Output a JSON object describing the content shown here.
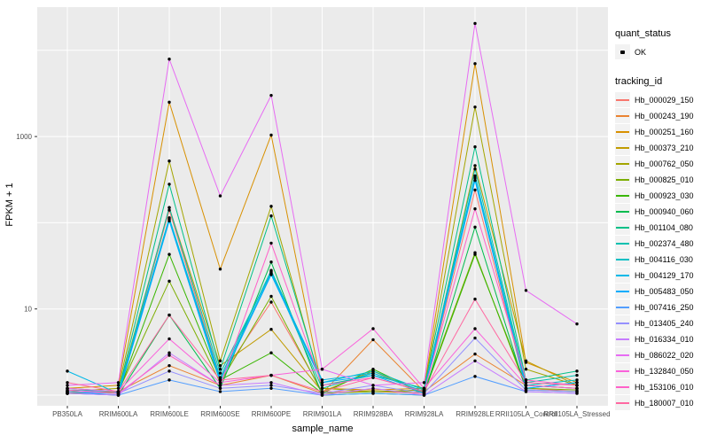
{
  "axes": {
    "x_title": "sample_name",
    "y_title": "FPKM + 1"
  },
  "legend": {
    "quant_status_title": "quant_status",
    "ok_label": "OK",
    "tracking_title": "tracking_id"
  },
  "chart_data": {
    "type": "line",
    "xlabel": "sample_name",
    "ylabel": "FPKM + 1",
    "y_scale": "log10",
    "ylim": [
      1,
      31600
    ],
    "grid": "on",
    "legend_position": "right",
    "panel_bg": "#EBEBEB",
    "gridline_color": "#FFFFFF",
    "point_color": "#000000",
    "tick_label_color": "#4D4D4D",
    "quant_status": "OK",
    "y_ticks": [
      {
        "label": "10",
        "value": 10
      },
      {
        "label": "1000",
        "value": 1000
      }
    ],
    "gridline_values": [
      1,
      10,
      100,
      1000,
      10000
    ],
    "x_categories": [
      "PB350LA",
      "RRIM600LA",
      "RRIM600LE",
      "RRIM600SE",
      "RRIM600PE",
      "RRIM901LA",
      "RRIM928BA",
      "RRIM928LA",
      "RRIM928LE",
      "RRII105LA_Control",
      "RRII105LA_Stressed"
    ],
    "series": [
      {
        "name": "Hb_000029_150",
        "color": "#F8766D",
        "values": [
          1.1,
          1.05,
          140,
          1.6,
          12,
          1.1,
          1.1,
          1.05,
          240,
          1.2,
          1.1
        ]
      },
      {
        "name": "Hb_000243_190",
        "color": "#EA8331",
        "values": [
          1.05,
          1.1,
          2.2,
          1.3,
          1.7,
          1.05,
          4.4,
          1.1,
          3.0,
          1.3,
          1.2
        ]
      },
      {
        "name": "Hb_000251_160",
        "color": "#D89000",
        "values": [
          1.2,
          1.3,
          2500,
          29,
          1040,
          1.2,
          1.15,
          1.2,
          7000,
          2.4,
          1.4
        ]
      },
      {
        "name": "Hb_000373_210",
        "color": "#C09B00",
        "values": [
          1.05,
          1.1,
          150,
          2.2,
          5.8,
          1.1,
          1.9,
          1.05,
          460,
          2.5,
          1.3
        ]
      },
      {
        "name": "Hb_000762_050",
        "color": "#A3A500",
        "values": [
          1.1,
          1.2,
          520,
          2.5,
          155,
          1.2,
          1.1,
          1.15,
          2200,
          2.0,
          1.3
        ]
      },
      {
        "name": "Hb_000825_010",
        "color": "#7CAE00",
        "values": [
          1.05,
          1.1,
          21,
          1.4,
          14,
          1.05,
          1.1,
          1.1,
          45,
          1.2,
          1.15
        ]
      },
      {
        "name": "Hb_000923_030",
        "color": "#39B600",
        "values": [
          1.1,
          1.05,
          43,
          1.5,
          3.1,
          1.05,
          2.0,
          1.05,
          43,
          1.3,
          1.2
        ]
      },
      {
        "name": "Hb_000940_060",
        "color": "#00BB4E",
        "values": [
          1.05,
          1.0,
          8.5,
          1.2,
          35,
          1.0,
          1.05,
          1.0,
          89,
          1.15,
          1.1
        ]
      },
      {
        "name": "Hb_001104_080",
        "color": "#00C087",
        "values": [
          1.2,
          1.1,
          280,
          2.0,
          120,
          1.3,
          1.7,
          1.2,
          760,
          1.5,
          1.9
        ]
      },
      {
        "name": "Hb_002374_480",
        "color": "#00C0AF",
        "values": [
          1.1,
          1.05,
          150,
          1.8,
          27,
          1.2,
          1.8,
          1.1,
          420,
          1.4,
          1.7
        ]
      },
      {
        "name": "Hb_004116_030",
        "color": "#00BFC4",
        "values": [
          1.15,
          1.1,
          114,
          1.6,
          28,
          1.4,
          1.9,
          1.15,
          350,
          1.3,
          1.5
        ]
      },
      {
        "name": "Hb_004129_170",
        "color": "#00B8E7",
        "values": [
          1.9,
          1.05,
          110,
          1.5,
          26,
          1.5,
          1.8,
          1.1,
          330,
          1.2,
          1.4
        ]
      },
      {
        "name": "Hb_005483_050",
        "color": "#00ACFC",
        "values": [
          1.1,
          1.0,
          105,
          1.4,
          25,
          1.4,
          1.7,
          1.05,
          310,
          1.2,
          1.4
        ]
      },
      {
        "name": "Hb_007416_250",
        "color": "#529EFF",
        "values": [
          1.05,
          1.0,
          1.5,
          1.1,
          1.2,
          1.0,
          1.05,
          1.0,
          1.65,
          1.1,
          1.05
        ]
      },
      {
        "name": "Hb_013405_240",
        "color": "#9590FF",
        "values": [
          1.1,
          1.05,
          1.9,
          1.2,
          1.3,
          1.05,
          1.3,
          1.05,
          4.6,
          1.15,
          1.1
        ]
      },
      {
        "name": "Hb_016334_010",
        "color": "#C77CFF",
        "values": [
          1.05,
          1.0,
          3.1,
          1.3,
          1.4,
          1.0,
          1.2,
          1.0,
          2.5,
          1.1,
          1.05
        ]
      },
      {
        "name": "Hb_086022_020",
        "color": "#E76BF3",
        "values": [
          1.3,
          1.4,
          7900,
          205,
          3000,
          2.0,
          1.3,
          1.4,
          20500,
          16.4,
          6.7
        ]
      },
      {
        "name": "Hb_132840_050",
        "color": "#FA62DB",
        "values": [
          1.2,
          1.1,
          4.5,
          1.4,
          1.7,
          2.0,
          5.9,
          1.2,
          5.9,
          1.3,
          1.2
        ]
      },
      {
        "name": "Hb_153106_010",
        "color": "#FF61C9",
        "values": [
          1.15,
          1.05,
          2.9,
          1.3,
          58,
          1.3,
          1.6,
          1.1,
          145,
          1.5,
          1.3
        ]
      },
      {
        "name": "Hb_180007_010",
        "color": "#FF68A1",
        "values": [
          1.4,
          1.1,
          8.5,
          1.5,
          1.7,
          1.1,
          1.6,
          1.1,
          13,
          1.4,
          1.3
        ]
      }
    ]
  }
}
